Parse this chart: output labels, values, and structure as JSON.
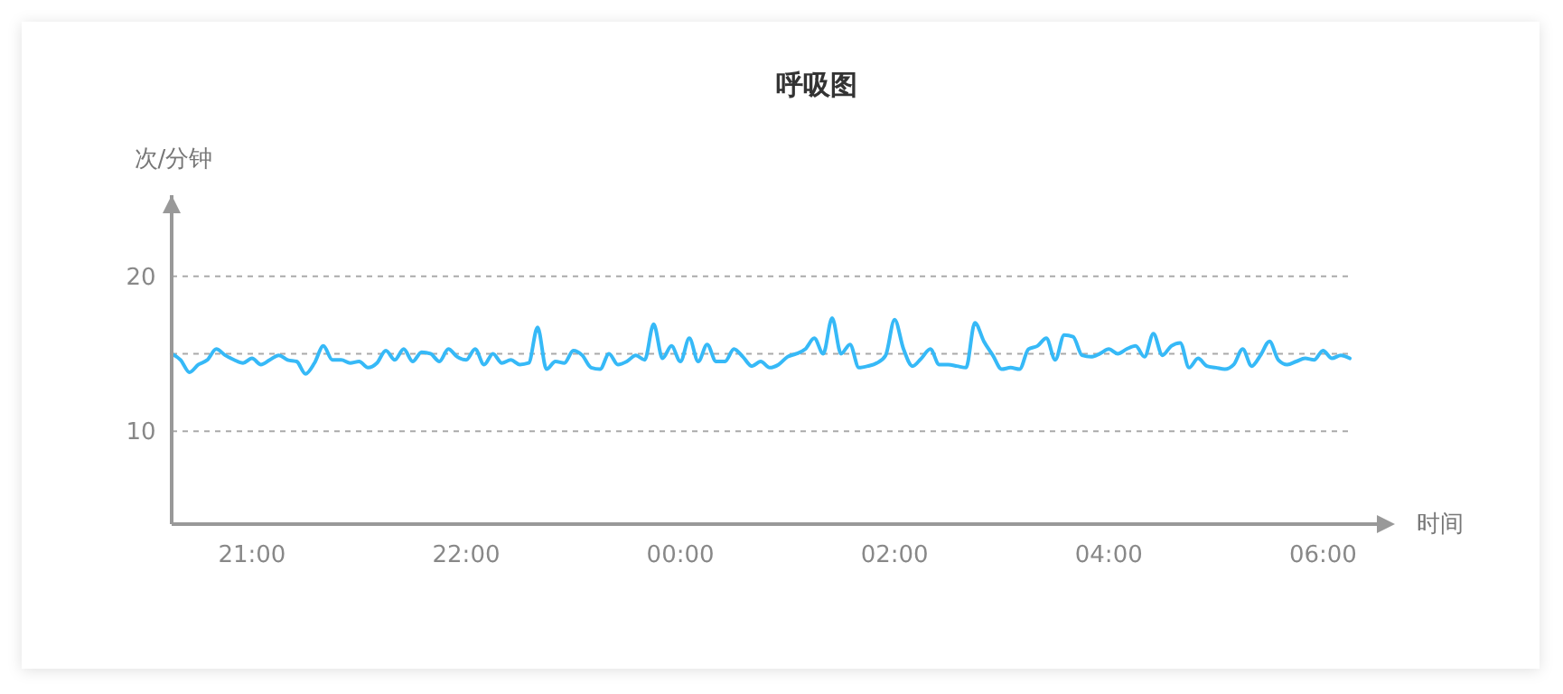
{
  "chart_data": {
    "type": "line",
    "title": "呼吸图",
    "xlabel": "时间",
    "ylabel": "次/分钟",
    "categories": [
      null,
      null,
      null,
      null,
      null,
      null,
      null,
      null,
      null,
      "21:00",
      null,
      null,
      null,
      null,
      null,
      null,
      null,
      null,
      null,
      null,
      null,
      null,
      null,
      null,
      null,
      null,
      null,
      null,
      null,
      null,
      null,
      null,
      null,
      "22:00",
      null,
      null,
      null,
      null,
      null,
      null,
      null,
      null,
      null,
      null,
      null,
      null,
      null,
      null,
      null,
      null,
      null,
      null,
      null,
      null,
      null,
      null,
      null,
      "00:00",
      null,
      null,
      null,
      null,
      null,
      null,
      null,
      null,
      null,
      null,
      null,
      null,
      null,
      null,
      null,
      null,
      null,
      null,
      null,
      null,
      null,
      null,
      null,
      "02:00",
      null,
      null,
      null,
      null,
      null,
      null,
      null,
      null,
      null,
      null,
      null,
      null,
      null,
      null,
      null,
      null,
      null,
      null,
      null,
      null,
      null,
      null,
      null,
      "04:00",
      null,
      null,
      null,
      null,
      null,
      null,
      null,
      null,
      null,
      null,
      null,
      null,
      null,
      null,
      null,
      null,
      null,
      null,
      null,
      null,
      null,
      null,
      null,
      "06:00",
      null,
      null,
      null
    ],
    "series": [
      {
        "color": "#36b9f7",
        "values": [
          15.0,
          14.6,
          13.8,
          14.3,
          14.6,
          15.3,
          14.9,
          14.6,
          14.4,
          14.7,
          14.3,
          14.6,
          14.9,
          14.6,
          14.5,
          13.7,
          14.4,
          15.5,
          14.6,
          14.6,
          14.4,
          14.5,
          14.1,
          14.4,
          15.2,
          14.6,
          15.3,
          14.5,
          15.1,
          15.0,
          14.5,
          15.3,
          14.8,
          14.6,
          15.3,
          14.3,
          15.0,
          14.4,
          14.6,
          14.3,
          14.4,
          16.7,
          14.0,
          14.5,
          14.4,
          15.2,
          14.9,
          14.1,
          14.0,
          15.0,
          14.3,
          14.5,
          14.9,
          14.6,
          16.9,
          14.7,
          15.5,
          14.5,
          16.0,
          14.5,
          15.6,
          14.5,
          14.5,
          15.3,
          14.8,
          14.2,
          14.5,
          14.1,
          14.3,
          14.8,
          15.0,
          15.3,
          16.0,
          15.0,
          17.3,
          15.0,
          15.6,
          14.1,
          14.2,
          14.4,
          14.9,
          17.2,
          15.3,
          14.2,
          14.7,
          15.3,
          14.3,
          14.3,
          14.2,
          14.1,
          17.0,
          15.8,
          14.9,
          14.0,
          14.1,
          14.0,
          15.3,
          15.5,
          16.0,
          14.6,
          16.2,
          16.1,
          14.9,
          14.8,
          15.0,
          15.3,
          15.0,
          15.3,
          15.5,
          14.8,
          16.3,
          14.9,
          15.5,
          15.7,
          14.1,
          14.7,
          14.2,
          14.1,
          14.0,
          14.3,
          15.3,
          14.2,
          14.9,
          15.8,
          14.6,
          14.3,
          14.5,
          14.7,
          14.6,
          15.2,
          14.7,
          14.9,
          14.7
        ]
      }
    ],
    "ylim": [
      4,
      25
    ],
    "yticks": [
      10,
      {
        "value": 15,
        "label": null
      },
      20
    ],
    "grid": "y",
    "marker": "none",
    "line_style": "solid"
  }
}
